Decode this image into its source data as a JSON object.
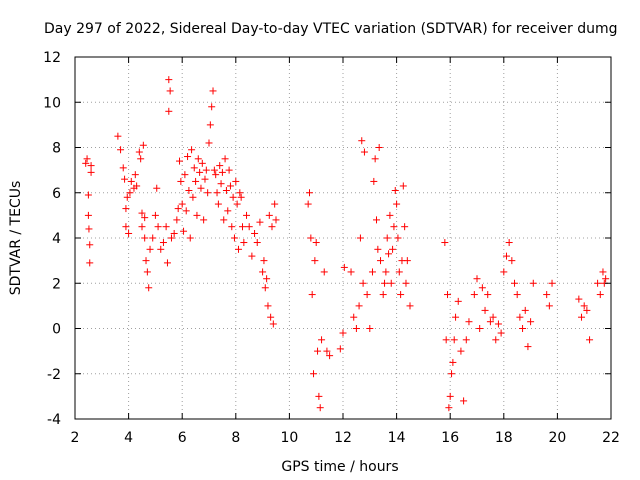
{
  "chart_data": {
    "type": "scatter",
    "title": "Day 297 of 2022, Sidereal Day-to-day VTEC variation (SDTVAR) for receiver dumg",
    "xlabel": "GPS time / hours",
    "ylabel": "SDTVAR / TECUs",
    "xlim": [
      2,
      22
    ],
    "ylim": [
      -4,
      12
    ],
    "xticks": [
      "2",
      "4",
      "6",
      "8",
      "10",
      "12",
      "14",
      "16",
      "18",
      "20",
      "22"
    ],
    "yticks": [
      "-4",
      "-2",
      "0",
      "2",
      "4",
      "6",
      "8",
      "10",
      "12"
    ],
    "grid": true,
    "marker": "+",
    "color": "#ff0000",
    "series": [
      {
        "name": "dumg",
        "x": [
          2.4,
          2.45,
          2.5,
          2.5,
          2.52,
          2.55,
          2.55,
          2.6,
          2.6,
          3.6,
          3.7,
          3.8,
          3.85,
          3.9,
          3.9,
          3.95,
          4.0,
          4.05,
          4.1,
          4.2,
          4.25,
          4.3,
          4.4,
          4.45,
          4.5,
          4.5,
          4.55,
          4.6,
          4.6,
          4.65,
          4.7,
          4.75,
          4.8,
          4.9,
          5.0,
          5.05,
          5.1,
          5.2,
          5.3,
          5.4,
          5.45,
          5.5,
          5.5,
          5.55,
          5.6,
          5.7,
          5.8,
          5.85,
          5.9,
          5.95,
          6.0,
          6.05,
          6.1,
          6.15,
          6.2,
          6.25,
          6.3,
          6.35,
          6.4,
          6.45,
          6.5,
          6.55,
          6.6,
          6.65,
          6.7,
          6.75,
          6.8,
          6.85,
          6.9,
          6.95,
          7.0,
          7.05,
          7.1,
          7.15,
          7.2,
          7.25,
          7.3,
          7.35,
          7.4,
          7.45,
          7.5,
          7.55,
          7.6,
          7.65,
          7.7,
          7.75,
          7.8,
          7.85,
          7.9,
          7.95,
          8.0,
          8.05,
          8.1,
          8.15,
          8.2,
          8.25,
          8.3,
          8.4,
          8.5,
          8.6,
          8.7,
          8.8,
          8.9,
          9.0,
          9.05,
          9.1,
          9.15,
          9.2,
          9.25,
          9.3,
          9.35,
          9.4,
          9.45,
          9.5,
          10.7,
          10.75,
          10.8,
          10.85,
          10.9,
          10.95,
          11.0,
          11.05,
          11.1,
          11.15,
          11.2,
          11.3,
          11.4,
          11.5,
          11.9,
          12.0,
          12.05,
          12.3,
          12.4,
          12.5,
          12.6,
          12.65,
          12.7,
          12.75,
          12.8,
          12.9,
          13.0,
          13.1,
          13.15,
          13.2,
          13.25,
          13.3,
          13.35,
          13.4,
          13.5,
          13.55,
          13.6,
          13.65,
          13.7,
          13.75,
          13.8,
          13.85,
          13.9,
          13.95,
          14.0,
          14.05,
          14.1,
          14.15,
          14.2,
          14.25,
          14.3,
          14.35,
          14.4,
          14.5,
          15.8,
          15.85,
          15.9,
          15.95,
          16.0,
          16.05,
          16.1,
          16.15,
          16.2,
          16.3,
          16.4,
          16.5,
          16.6,
          16.7,
          16.9,
          17.0,
          17.1,
          17.2,
          17.3,
          17.4,
          17.5,
          17.6,
          17.7,
          17.8,
          17.9,
          18.0,
          18.1,
          18.2,
          18.3,
          18.4,
          18.5,
          18.6,
          18.7,
          18.8,
          18.9,
          19.0,
          19.1,
          19.6,
          19.7,
          19.8,
          20.8,
          20.9,
          21.0,
          21.1,
          21.2,
          21.5,
          21.6,
          21.7,
          21.75,
          21.8
        ],
        "y": [
          7.3,
          7.5,
          5.9,
          5.0,
          4.4,
          3.7,
          2.9,
          7.2,
          6.9,
          8.5,
          7.9,
          7.1,
          6.6,
          5.3,
          4.5,
          5.8,
          4.2,
          6.0,
          6.5,
          6.2,
          6.8,
          6.3,
          7.8,
          7.5,
          4.5,
          5.1,
          8.1,
          4.0,
          4.9,
          3.0,
          2.5,
          1.8,
          3.5,
          4.0,
          5.0,
          6.2,
          4.5,
          3.5,
          3.8,
          4.5,
          2.9,
          9.6,
          11.0,
          10.5,
          4.0,
          4.2,
          4.8,
          5.3,
          7.4,
          6.5,
          5.5,
          4.3,
          6.8,
          5.2,
          7.6,
          6.1,
          4.0,
          7.9,
          5.8,
          7.1,
          6.5,
          5.0,
          7.5,
          6.9,
          6.2,
          7.3,
          4.8,
          6.6,
          7.0,
          6.0,
          8.2,
          9.0,
          9.8,
          10.5,
          7.0,
          6.8,
          6.0,
          5.5,
          7.2,
          6.4,
          6.9,
          4.8,
          7.5,
          6.1,
          5.2,
          7.0,
          6.3,
          4.5,
          5.8,
          4.0,
          6.5,
          5.5,
          3.5,
          6.0,
          5.8,
          4.5,
          3.8,
          5.0,
          4.5,
          3.2,
          4.2,
          3.8,
          4.7,
          2.5,
          3.0,
          1.8,
          2.2,
          1.0,
          5.0,
          0.5,
          4.5,
          0.2,
          5.5,
          4.8,
          5.5,
          6.0,
          4.0,
          1.5,
          -2.0,
          3.0,
          3.8,
          -1.0,
          -3.0,
          -3.5,
          -0.5,
          2.5,
          -1.0,
          -1.2,
          -0.9,
          -0.2,
          2.7,
          2.5,
          0.5,
          0.0,
          1.0,
          4.0,
          8.3,
          2.0,
          7.8,
          1.5,
          0.0,
          2.5,
          6.5,
          7.5,
          4.8,
          3.5,
          8.0,
          3.0,
          1.5,
          2.0,
          2.5,
          4.0,
          3.3,
          5.0,
          2.0,
          3.5,
          4.5,
          6.1,
          5.5,
          4.0,
          2.5,
          1.5,
          3.0,
          6.3,
          4.5,
          2.0,
          3.0,
          1.0,
          3.8,
          -0.5,
          1.5,
          -3.5,
          -3.0,
          -2.0,
          -1.5,
          -0.5,
          0.5,
          1.2,
          -1.0,
          -3.2,
          -0.5,
          0.3,
          1.5,
          2.2,
          0.0,
          1.8,
          0.8,
          1.5,
          0.3,
          0.5,
          -0.5,
          0.2,
          -0.2,
          2.5,
          3.2,
          3.8,
          3.0,
          2.0,
          1.5,
          0.5,
          0.0,
          0.8,
          -0.8,
          0.3,
          2.0,
          1.5,
          1.0,
          2.0,
          1.3,
          0.5,
          1.0,
          0.8,
          -0.5,
          2.0,
          1.5,
          2.5,
          2.0,
          2.2
        ]
      }
    ]
  }
}
